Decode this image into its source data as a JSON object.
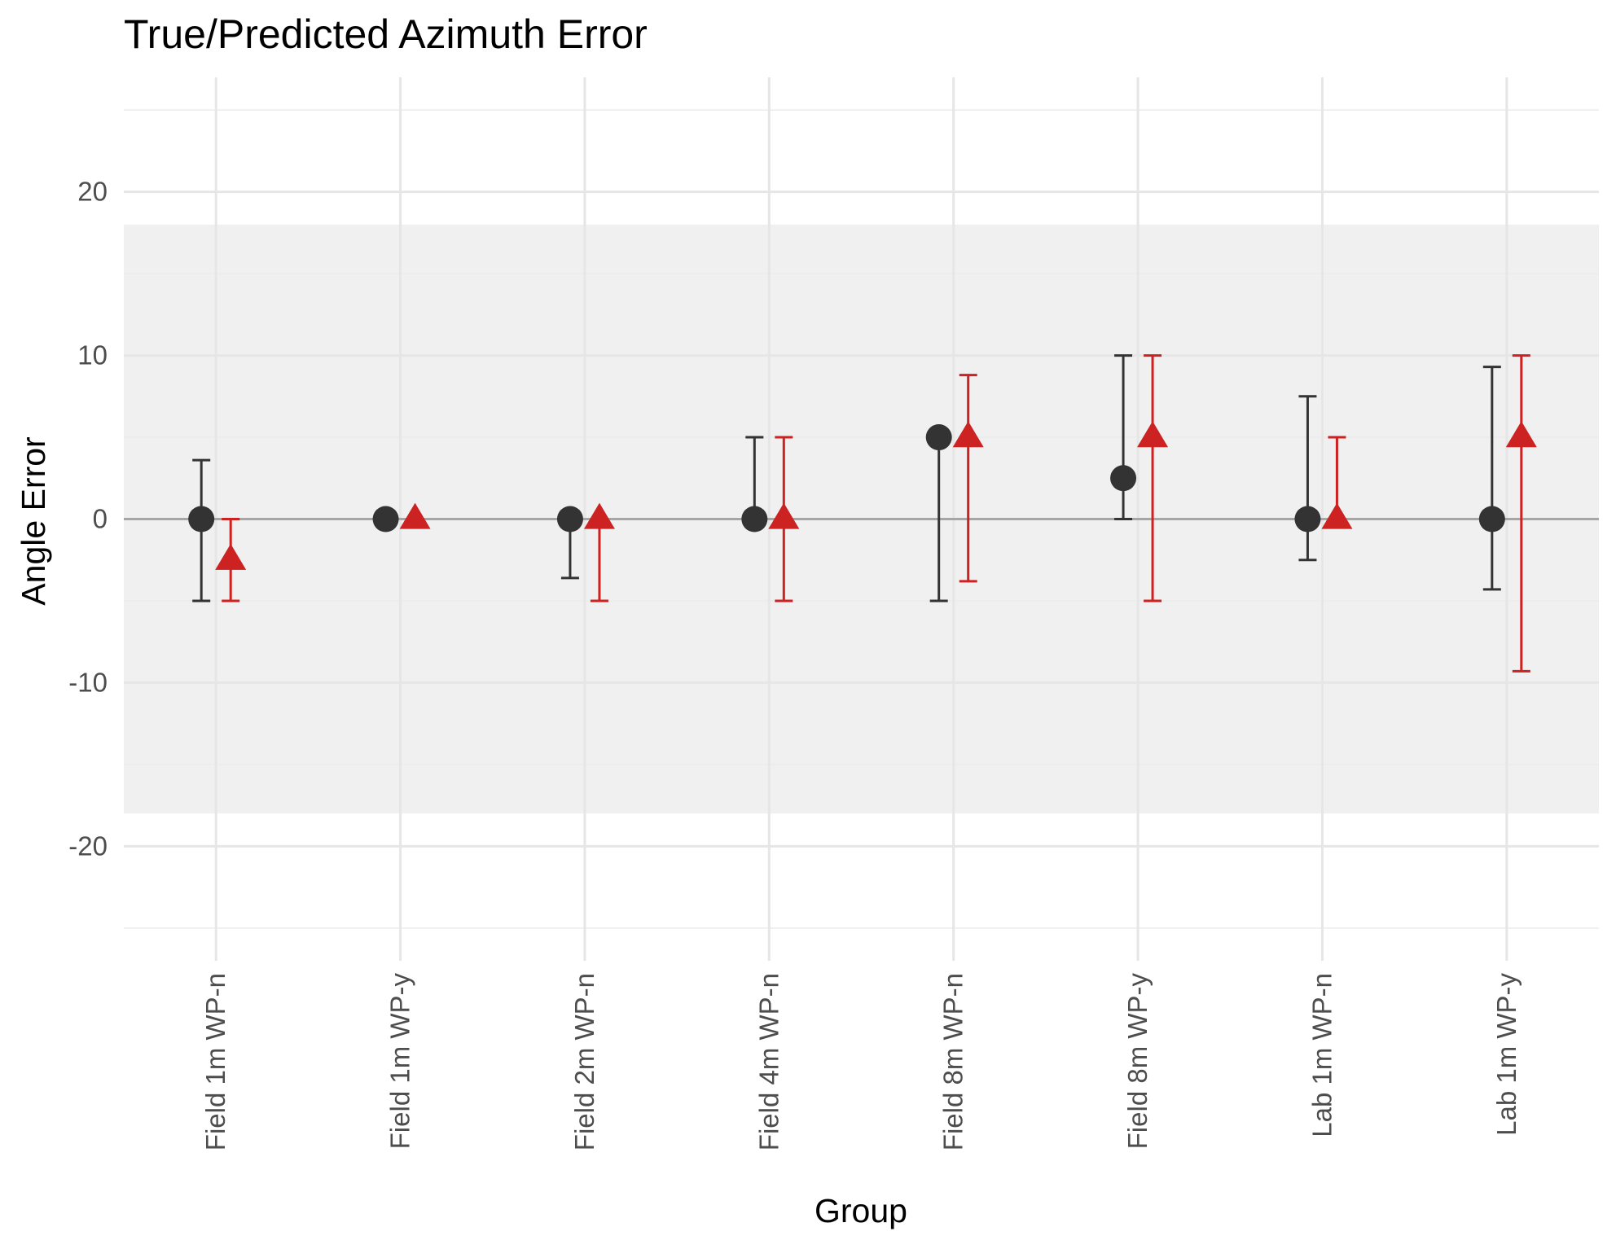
{
  "chart_data": {
    "type": "scatter",
    "title": "True/Predicted Azimuth Error",
    "xlabel": "Group",
    "ylabel": "Angle Error",
    "categories": [
      "Field 1m  WP-n",
      "Field 1m  WP-y",
      "Field 2m  WP-n",
      "Field 4m  WP-n",
      "Field 8m  WP-n",
      "Field 8m  WP-y",
      "Lab 1m  WP-n",
      "Lab 1m  WP-y"
    ],
    "ylim": [
      -27,
      27
    ],
    "yticks": [
      -20,
      -10,
      0,
      10,
      20
    ],
    "ytick_labels": [
      "-20",
      "-10",
      "0",
      "10",
      "20"
    ],
    "band": [
      -18,
      18
    ],
    "reference_line": 0,
    "grid": true,
    "legend": "none",
    "series": [
      {
        "marker": "circle",
        "color": "#333333",
        "values": [
          0,
          0,
          0,
          0,
          5,
          2.5,
          0,
          0
        ],
        "lower": [
          -5,
          null,
          -3.6,
          null,
          -5,
          0,
          -2.5,
          -4.3
        ],
        "upper": [
          3.6,
          null,
          null,
          5,
          null,
          10,
          7.5,
          9.3
        ]
      },
      {
        "marker": "triangle",
        "color": "#cc2222",
        "values": [
          -2.5,
          0,
          0,
          0,
          5,
          5,
          0,
          5
        ],
        "lower": [
          -5,
          null,
          -5,
          -5,
          -3.8,
          -5,
          null,
          -9.3
        ],
        "upper": [
          0,
          null,
          null,
          5,
          8.8,
          10,
          5,
          10
        ]
      }
    ]
  }
}
